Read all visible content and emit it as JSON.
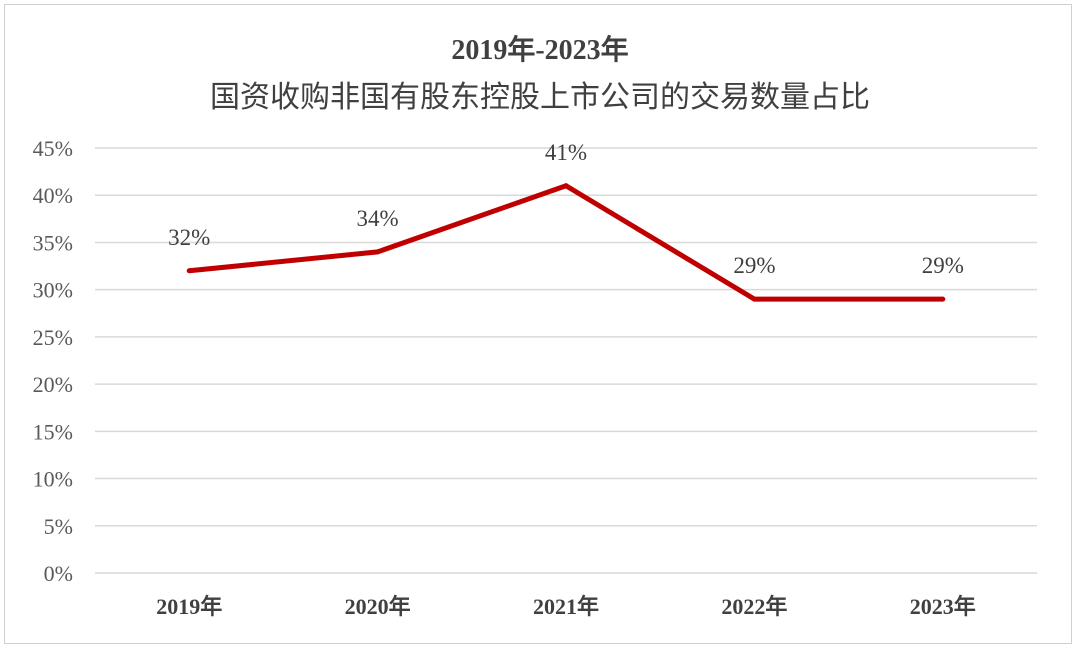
{
  "chart_data": {
    "type": "line",
    "title": "2019年-2023年",
    "subtitle": "国资收购非国有股东控股上市公司的交易数量占比",
    "categories": [
      "2019年",
      "2020年",
      "2021年",
      "2022年",
      "2023年"
    ],
    "series": [
      {
        "values": [
          32,
          34,
          41,
          29,
          29
        ],
        "color": "#C00000"
      }
    ],
    "data_labels": [
      "32%",
      "34%",
      "41%",
      "29%",
      "29%"
    ],
    "ylim": [
      0,
      45
    ],
    "yticks": [
      "0%",
      "5%",
      "10%",
      "15%",
      "20%",
      "25%",
      "30%",
      "35%",
      "40%",
      "45%"
    ],
    "ytick_values": [
      0,
      5,
      10,
      15,
      20,
      25,
      30,
      35,
      40,
      45
    ],
    "grid": true,
    "gridline_color": "#d9d9d9",
    "legend": "none"
  }
}
